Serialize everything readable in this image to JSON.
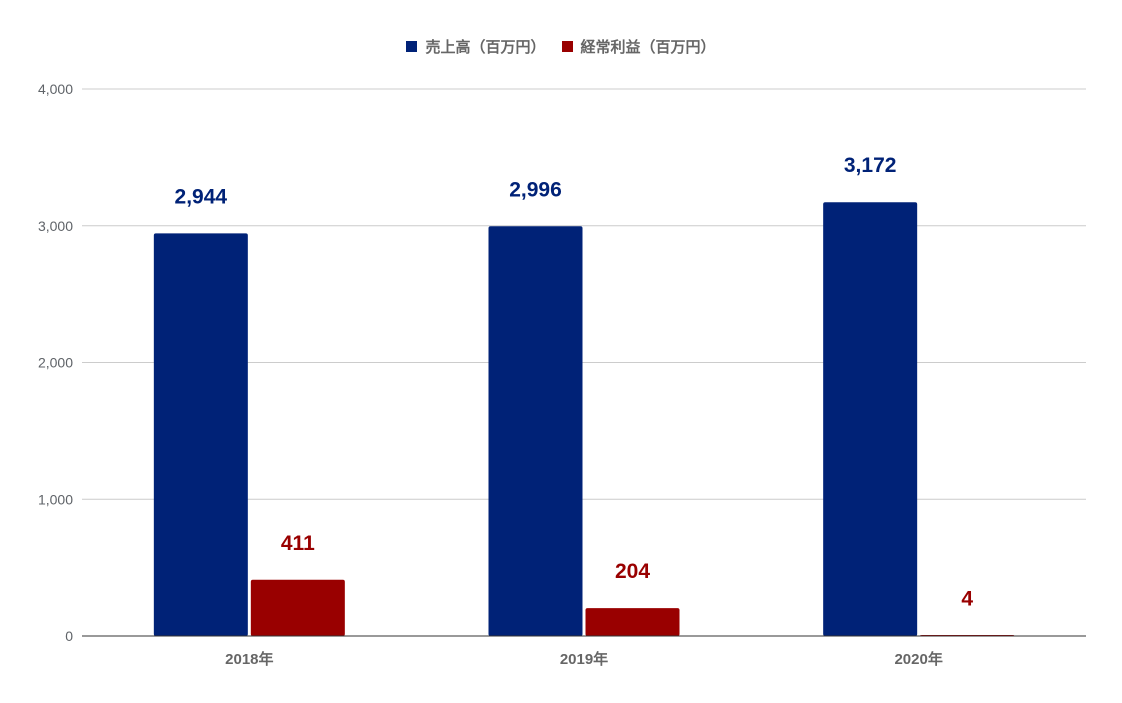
{
  "chart_data": {
    "type": "bar",
    "title": "",
    "xlabel": "",
    "ylabel": "",
    "categories": [
      "2018年",
      "2019年",
      "2020年"
    ],
    "series": [
      {
        "name": "売上高（百万円）",
        "color": "#002277",
        "values": [
          2944,
          2996,
          3172
        ],
        "labels": [
          "2,944",
          "2,996",
          "3,172"
        ]
      },
      {
        "name": "経常利益（百万円）",
        "color": "#990000",
        "values": [
          411,
          204,
          4
        ],
        "labels": [
          "411",
          "204",
          "4"
        ]
      }
    ],
    "ylim": [
      0,
      4000
    ],
    "yticks": [
      0,
      1000,
      2000,
      3000,
      4000
    ],
    "ytick_labels": [
      "0",
      "1,000",
      "2,000",
      "3,000",
      "4,000"
    ],
    "grid": true,
    "legend_position": "top-center"
  }
}
